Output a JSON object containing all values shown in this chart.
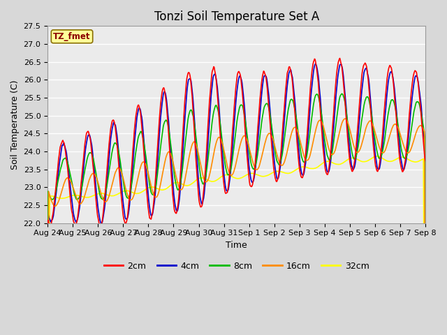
{
  "title": "Tonzi Soil Temperature Set A",
  "xlabel": "Time",
  "ylabel": "Soil Temperature (C)",
  "ylim": [
    22.0,
    27.5
  ],
  "yticks": [
    22.0,
    22.5,
    23.0,
    23.5,
    24.0,
    24.5,
    25.0,
    25.5,
    26.0,
    26.5,
    27.0,
    27.5
  ],
  "annotation": "TZ_fmet",
  "annotation_color": "#8B0000",
  "annotation_bg": "#FFFF99",
  "annotation_border": "#8B7000",
  "series": {
    "2cm": {
      "color": "#FF0000",
      "linewidth": 1.2
    },
    "4cm": {
      "color": "#0000CC",
      "linewidth": 1.2
    },
    "8cm": {
      "color": "#00BB00",
      "linewidth": 1.2
    },
    "16cm": {
      "color": "#FF8C00",
      "linewidth": 1.2
    },
    "32cm": {
      "color": "#FFFF00",
      "linewidth": 1.2
    }
  },
  "bg_color": "#D8D8D8",
  "plot_bg": "#EBEBEB",
  "grid_color": "#FFFFFF",
  "xtick_labels": [
    "Aug 24",
    "Aug 25",
    "Aug 26",
    "Aug 27",
    "Aug 28",
    "Aug 29",
    "Aug 30",
    "Aug 31",
    "Sep 1",
    "Sep 2",
    "Sep 3",
    "Sep 4",
    "Sep 5",
    "Sep 6",
    "Sep 7",
    "Sep 8"
  ],
  "title_fontsize": 12,
  "tick_fontsize": 8,
  "label_fontsize": 9,
  "legend_fontsize": 9
}
